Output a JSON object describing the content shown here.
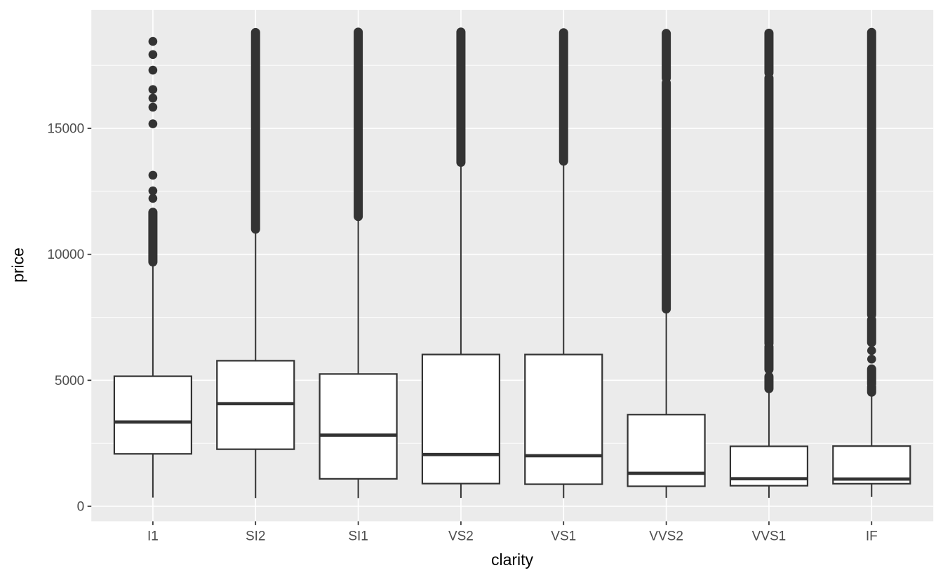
{
  "figure": {
    "background": "#ffffff",
    "panel_background": "#ebebeb",
    "grid_color": "#ffffff",
    "stroke_color": "#333333",
    "axis_text_color": "#4d4d4d",
    "box_fill": "#ffffff"
  },
  "chart_data": {
    "type": "boxplot",
    "title": "",
    "xlabel": "clarity",
    "ylabel": "price",
    "legend": "none",
    "grid": "on",
    "x_tick_labels": [
      "I1",
      "SI2",
      "SI1",
      "VS2",
      "VS1",
      "VVS2",
      "VVS1",
      "IF"
    ],
    "y_tick_labels": [
      "0",
      "5000",
      "10000",
      "15000"
    ],
    "y_ticks": [
      0,
      5000,
      10000,
      15000
    ],
    "y_minor_ticks": [
      2500,
      7500,
      12500,
      17500
    ],
    "ylim": [
      -600,
      19750
    ],
    "categories": [
      "I1",
      "SI2",
      "SI1",
      "VS2",
      "VS1",
      "VVS2",
      "VVS1",
      "IF"
    ],
    "series": [
      {
        "clarity": "I1",
        "lower_whisker": 345,
        "q1": 2080,
        "median": 3344,
        "q3": 5161,
        "upper_whisker": 9782,
        "outlier_dots": [
          18450,
          17930,
          17310,
          16540,
          16200,
          15840,
          15180,
          13140,
          12520,
          12220
        ],
        "outlier_bands": [
          [
            11670,
            9700
          ]
        ]
      },
      {
        "clarity": "SI2",
        "lower_whisker": 326,
        "q1": 2264,
        "median": 4072,
        "q3": 5777,
        "upper_whisker": 11046,
        "outlier_dots": [],
        "outlier_bands": [
          [
            18804,
            11000
          ]
        ]
      },
      {
        "clarity": "SI1",
        "lower_whisker": 326,
        "q1": 1089,
        "median": 2822,
        "q3": 5250,
        "upper_whisker": 11491,
        "outlier_dots": [],
        "outlier_bands": [
          [
            18818,
            11500
          ]
        ]
      },
      {
        "clarity": "VS2",
        "lower_whisker": 334,
        "q1": 900,
        "median": 2054,
        "q3": 6024,
        "upper_whisker": 13710,
        "outlier_dots": [],
        "outlier_bands": [
          [
            18823,
            13650
          ]
        ]
      },
      {
        "clarity": "VS1",
        "lower_whisker": 327,
        "q1": 876,
        "median": 2005,
        "q3": 6023,
        "upper_whisker": 13743,
        "outlier_dots": [],
        "outlier_bands": [
          [
            18795,
            13700
          ]
        ]
      },
      {
        "clarity": "VVS2",
        "lower_whisker": 336,
        "q1": 794,
        "median": 1311,
        "q3": 3638,
        "upper_whisker": 7904,
        "outlier_dots": [],
        "outlier_bands": [
          [
            18768,
            17000
          ],
          [
            16800,
            7830
          ]
        ]
      },
      {
        "clarity": "VVS1",
        "lower_whisker": 336,
        "q1": 816,
        "median": 1093,
        "q3": 2379,
        "upper_whisker": 4723,
        "outlier_dots": [],
        "outlier_bands": [
          [
            18777,
            17200
          ],
          [
            17000,
            6460
          ],
          [
            6330,
            5430
          ],
          [
            5150,
            4670
          ]
        ]
      },
      {
        "clarity": "IF",
        "lower_whisker": 369,
        "q1": 895,
        "median": 1080,
        "q3": 2388,
        "upper_whisker": 4627,
        "outlier_dots": [
          6180,
          5840
        ],
        "outlier_bands": [
          [
            18806,
            7600
          ],
          [
            7400,
            6500
          ],
          [
            5450,
            4850
          ],
          [
            4750,
            4530
          ]
        ]
      }
    ]
  }
}
